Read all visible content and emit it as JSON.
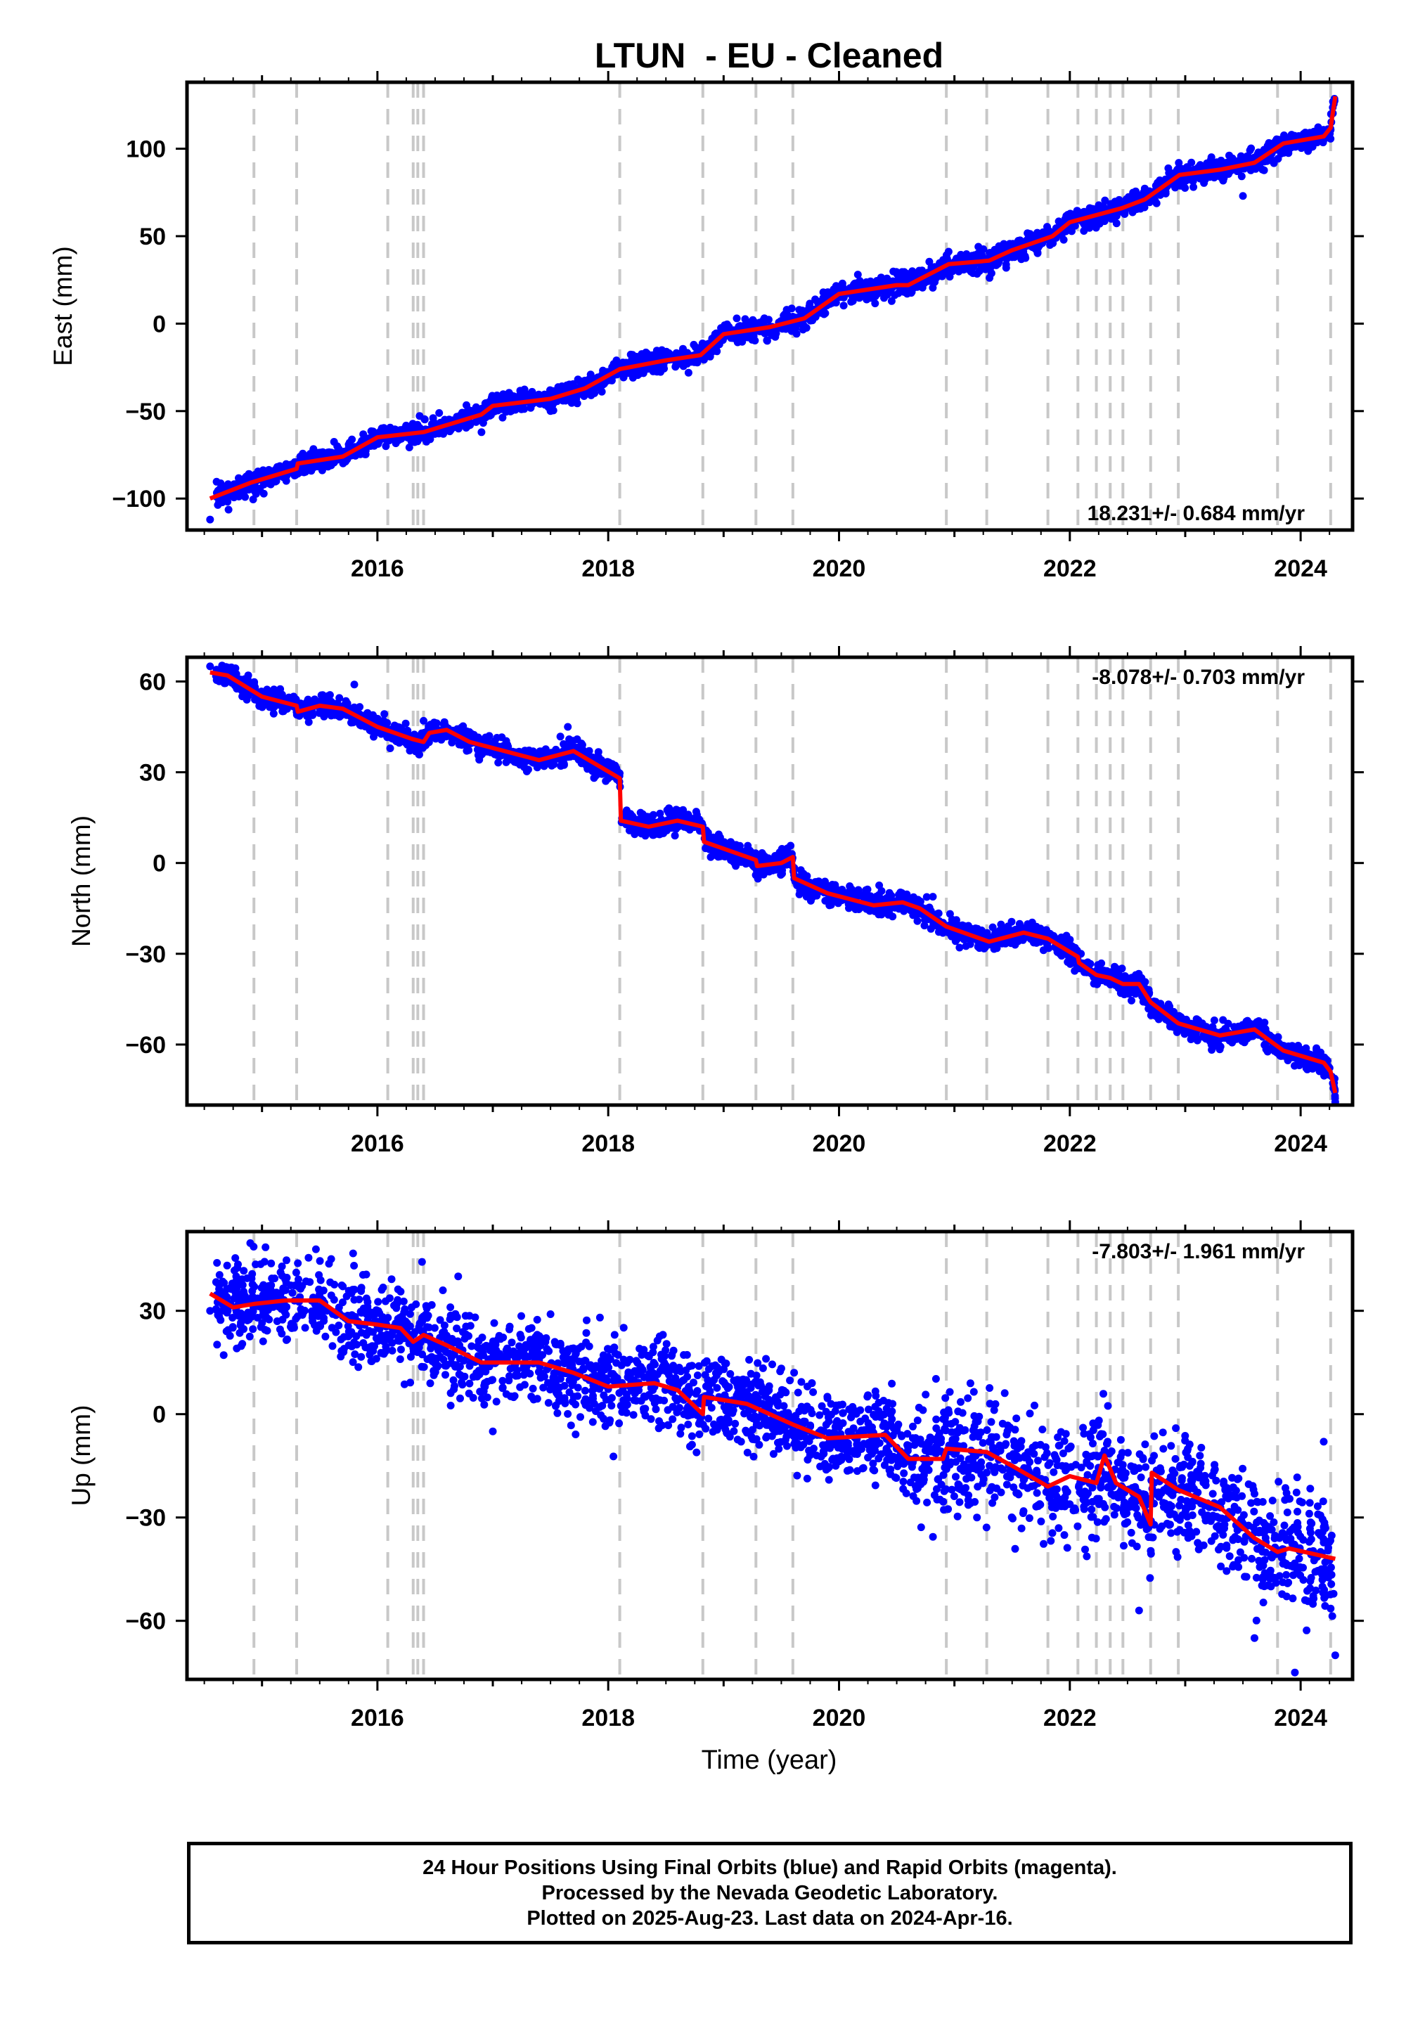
{
  "title": "LTUN  - EU - Cleaned",
  "x_axis_label": "Time (year)",
  "footer": {
    "line1": "24 Hour Positions Using Final Orbits (blue) and Rapid Orbits (magenta).",
    "line2": "Processed by the Nevada Geodetic Laboratory.",
    "line3": "Plotted on 2025-Aug-23. Last data on 2024-Apr-16."
  },
  "colors": {
    "points": "#0000ff",
    "model": "#ff0000",
    "steps": "#c8c8c8",
    "frame": "#000000"
  },
  "chart_data": [
    {
      "type": "scatter",
      "ylabel": "East (mm)",
      "rate_label": "18.231+/- 0.684 mm/yr",
      "rate_position": "bottom-right",
      "xlim": [
        2014.35,
        2024.45
      ],
      "ylim": [
        -118,
        138
      ],
      "x_ticks": [
        "2016",
        "2018",
        "2020",
        "2022",
        "2024"
      ],
      "y_ticks": [
        "-100",
        "-50",
        "0",
        "50",
        "100"
      ],
      "step_lines": [
        2014.93,
        2015.3,
        2016.09,
        2016.31,
        2016.35,
        2016.4,
        2018.1,
        2018.82,
        2019.28,
        2019.6,
        2020.93,
        2021.28,
        2021.81,
        2022.07,
        2022.23,
        2022.35,
        2022.46,
        2022.7,
        2022.94,
        2023.8,
        2024.26
      ],
      "model": [
        [
          2014.55,
          -100
        ],
        [
          2014.9,
          -91
        ],
        [
          2015.3,
          -83
        ],
        [
          2015.31,
          -80
        ],
        [
          2015.7,
          -76
        ],
        [
          2016.0,
          -65
        ],
        [
          2016.4,
          -62
        ],
        [
          2016.9,
          -52
        ],
        [
          2017.0,
          -47
        ],
        [
          2017.5,
          -43
        ],
        [
          2017.8,
          -37
        ],
        [
          2018.1,
          -26
        ],
        [
          2018.5,
          -21
        ],
        [
          2018.8,
          -18
        ],
        [
          2019.0,
          -6
        ],
        [
          2019.4,
          -2
        ],
        [
          2019.7,
          3
        ],
        [
          2020.0,
          17
        ],
        [
          2020.5,
          22
        ],
        [
          2020.6,
          22
        ],
        [
          2020.95,
          34
        ],
        [
          2021.3,
          36
        ],
        [
          2021.5,
          42
        ],
        [
          2021.85,
          50
        ],
        [
          2022.0,
          58
        ],
        [
          2022.45,
          66
        ],
        [
          2022.65,
          71
        ],
        [
          2022.95,
          85
        ],
        [
          2023.3,
          88
        ],
        [
          2023.6,
          92
        ],
        [
          2023.85,
          103
        ],
        [
          2024.2,
          107
        ],
        [
          2024.26,
          112
        ],
        [
          2024.3,
          130
        ]
      ],
      "scatter_sigma": 3,
      "extra_points": [
        [
          2014.55,
          -112
        ],
        [
          2014.7,
          -99
        ],
        [
          2016.6,
          -60
        ],
        [
          2017.5,
          -50
        ],
        [
          2021.5,
          38
        ],
        [
          2023.5,
          73
        ]
      ]
    },
    {
      "type": "scatter",
      "ylabel": "North (mm)",
      "rate_label": "-8.078+/- 0.703 mm/yr",
      "rate_position": "top-right",
      "xlim": [
        2014.35,
        2024.45
      ],
      "ylim": [
        -80,
        68
      ],
      "x_ticks": [
        "2016",
        "2018",
        "2020",
        "2022",
        "2024"
      ],
      "y_ticks": [
        "-60",
        "-30",
        "0",
        "30",
        "60"
      ],
      "step_lines": [
        2014.93,
        2015.3,
        2016.09,
        2016.31,
        2016.35,
        2016.4,
        2018.1,
        2018.82,
        2019.28,
        2019.6,
        2020.93,
        2021.28,
        2021.81,
        2022.07,
        2022.23,
        2022.35,
        2022.46,
        2022.7,
        2022.94,
        2023.8,
        2024.26
      ],
      "model": [
        [
          2014.55,
          63
        ],
        [
          2014.7,
          62
        ],
        [
          2015.0,
          55
        ],
        [
          2015.3,
          52
        ],
        [
          2015.31,
          50
        ],
        [
          2015.5,
          52
        ],
        [
          2015.7,
          51
        ],
        [
          2016.0,
          45
        ],
        [
          2016.3,
          41
        ],
        [
          2016.4,
          40
        ],
        [
          2016.45,
          43
        ],
        [
          2016.6,
          44
        ],
        [
          2016.8,
          40
        ],
        [
          2017.1,
          37
        ],
        [
          2017.4,
          34
        ],
        [
          2017.7,
          37
        ],
        [
          2018.1,
          28
        ],
        [
          2018.11,
          14
        ],
        [
          2018.35,
          12
        ],
        [
          2018.6,
          14
        ],
        [
          2018.82,
          12
        ],
        [
          2018.83,
          7
        ],
        [
          2019.28,
          1
        ],
        [
          2019.29,
          -1
        ],
        [
          2019.5,
          0
        ],
        [
          2019.6,
          2
        ],
        [
          2019.61,
          -5
        ],
        [
          2019.9,
          -10
        ],
        [
          2020.3,
          -14
        ],
        [
          2020.55,
          -13
        ],
        [
          2020.7,
          -15
        ],
        [
          2020.93,
          -21
        ],
        [
          2021.3,
          -26
        ],
        [
          2021.6,
          -23
        ],
        [
          2021.81,
          -25
        ],
        [
          2022.07,
          -31
        ],
        [
          2022.08,
          -33
        ],
        [
          2022.23,
          -37
        ],
        [
          2022.35,
          -38
        ],
        [
          2022.46,
          -40
        ],
        [
          2022.6,
          -40
        ],
        [
          2022.7,
          -46
        ],
        [
          2022.94,
          -53
        ],
        [
          2023.3,
          -57
        ],
        [
          2023.6,
          -55
        ],
        [
          2023.85,
          -62
        ],
        [
          2024.2,
          -66
        ],
        [
          2024.26,
          -69
        ],
        [
          2024.3,
          -76
        ]
      ],
      "scatter_sigma": 1.8,
      "extra_points": [
        [
          2014.55,
          65
        ],
        [
          2015.8,
          59
        ],
        [
          2017.65,
          45
        ],
        [
          2016.4,
          47
        ],
        [
          2024.3,
          -79
        ]
      ]
    },
    {
      "type": "scatter",
      "ylabel": "Up (mm)",
      "rate_label": "-7.803+/- 1.961 mm/yr",
      "rate_position": "top-right",
      "xlim": [
        2014.35,
        2024.45
      ],
      "ylim": [
        -77,
        53
      ],
      "x_ticks": [
        "2016",
        "2018",
        "2020",
        "2022",
        "2024"
      ],
      "y_ticks": [
        "-60",
        "-30",
        "0",
        "30"
      ],
      "step_lines": [
        2014.93,
        2015.3,
        2016.09,
        2016.31,
        2016.35,
        2016.4,
        2018.1,
        2018.82,
        2019.28,
        2019.6,
        2020.93,
        2021.28,
        2021.81,
        2022.07,
        2022.23,
        2022.35,
        2022.46,
        2022.7,
        2022.94,
        2023.8,
        2024.26
      ],
      "model": [
        [
          2014.55,
          35
        ],
        [
          2014.75,
          31
        ],
        [
          2014.93,
          32
        ],
        [
          2015.2,
          33
        ],
        [
          2015.5,
          33
        ],
        [
          2015.75,
          27
        ],
        [
          2016.0,
          26
        ],
        [
          2016.2,
          25
        ],
        [
          2016.31,
          21
        ],
        [
          2016.4,
          23
        ],
        [
          2016.6,
          20
        ],
        [
          2016.9,
          15
        ],
        [
          2017.4,
          15
        ],
        [
          2017.7,
          12
        ],
        [
          2018.0,
          8
        ],
        [
          2018.4,
          9
        ],
        [
          2018.6,
          7
        ],
        [
          2018.82,
          0
        ],
        [
          2018.83,
          5
        ],
        [
          2019.2,
          3
        ],
        [
          2019.6,
          -3
        ],
        [
          2019.9,
          -7
        ],
        [
          2020.4,
          -6
        ],
        [
          2020.6,
          -13
        ],
        [
          2020.9,
          -13
        ],
        [
          2020.93,
          -10
        ],
        [
          2021.28,
          -11
        ],
        [
          2021.5,
          -15
        ],
        [
          2021.81,
          -21
        ],
        [
          2022.0,
          -18
        ],
        [
          2022.23,
          -20
        ],
        [
          2022.3,
          -12
        ],
        [
          2022.4,
          -20
        ],
        [
          2022.6,
          -24
        ],
        [
          2022.7,
          -32
        ],
        [
          2022.71,
          -17
        ],
        [
          2022.94,
          -22
        ],
        [
          2023.3,
          -27
        ],
        [
          2023.6,
          -36
        ],
        [
          2023.8,
          -40
        ],
        [
          2023.9,
          -39
        ],
        [
          2024.3,
          -42
        ]
      ],
      "scatter_sigma": 6,
      "extra_points": [
        [
          2014.55,
          30
        ],
        [
          2016.7,
          40
        ],
        [
          2017.0,
          -5
        ],
        [
          2022.6,
          -57
        ],
        [
          2023.6,
          -65
        ],
        [
          2023.95,
          -75
        ],
        [
          2024.3,
          -70
        ],
        [
          2024.2,
          -8
        ]
      ]
    }
  ]
}
